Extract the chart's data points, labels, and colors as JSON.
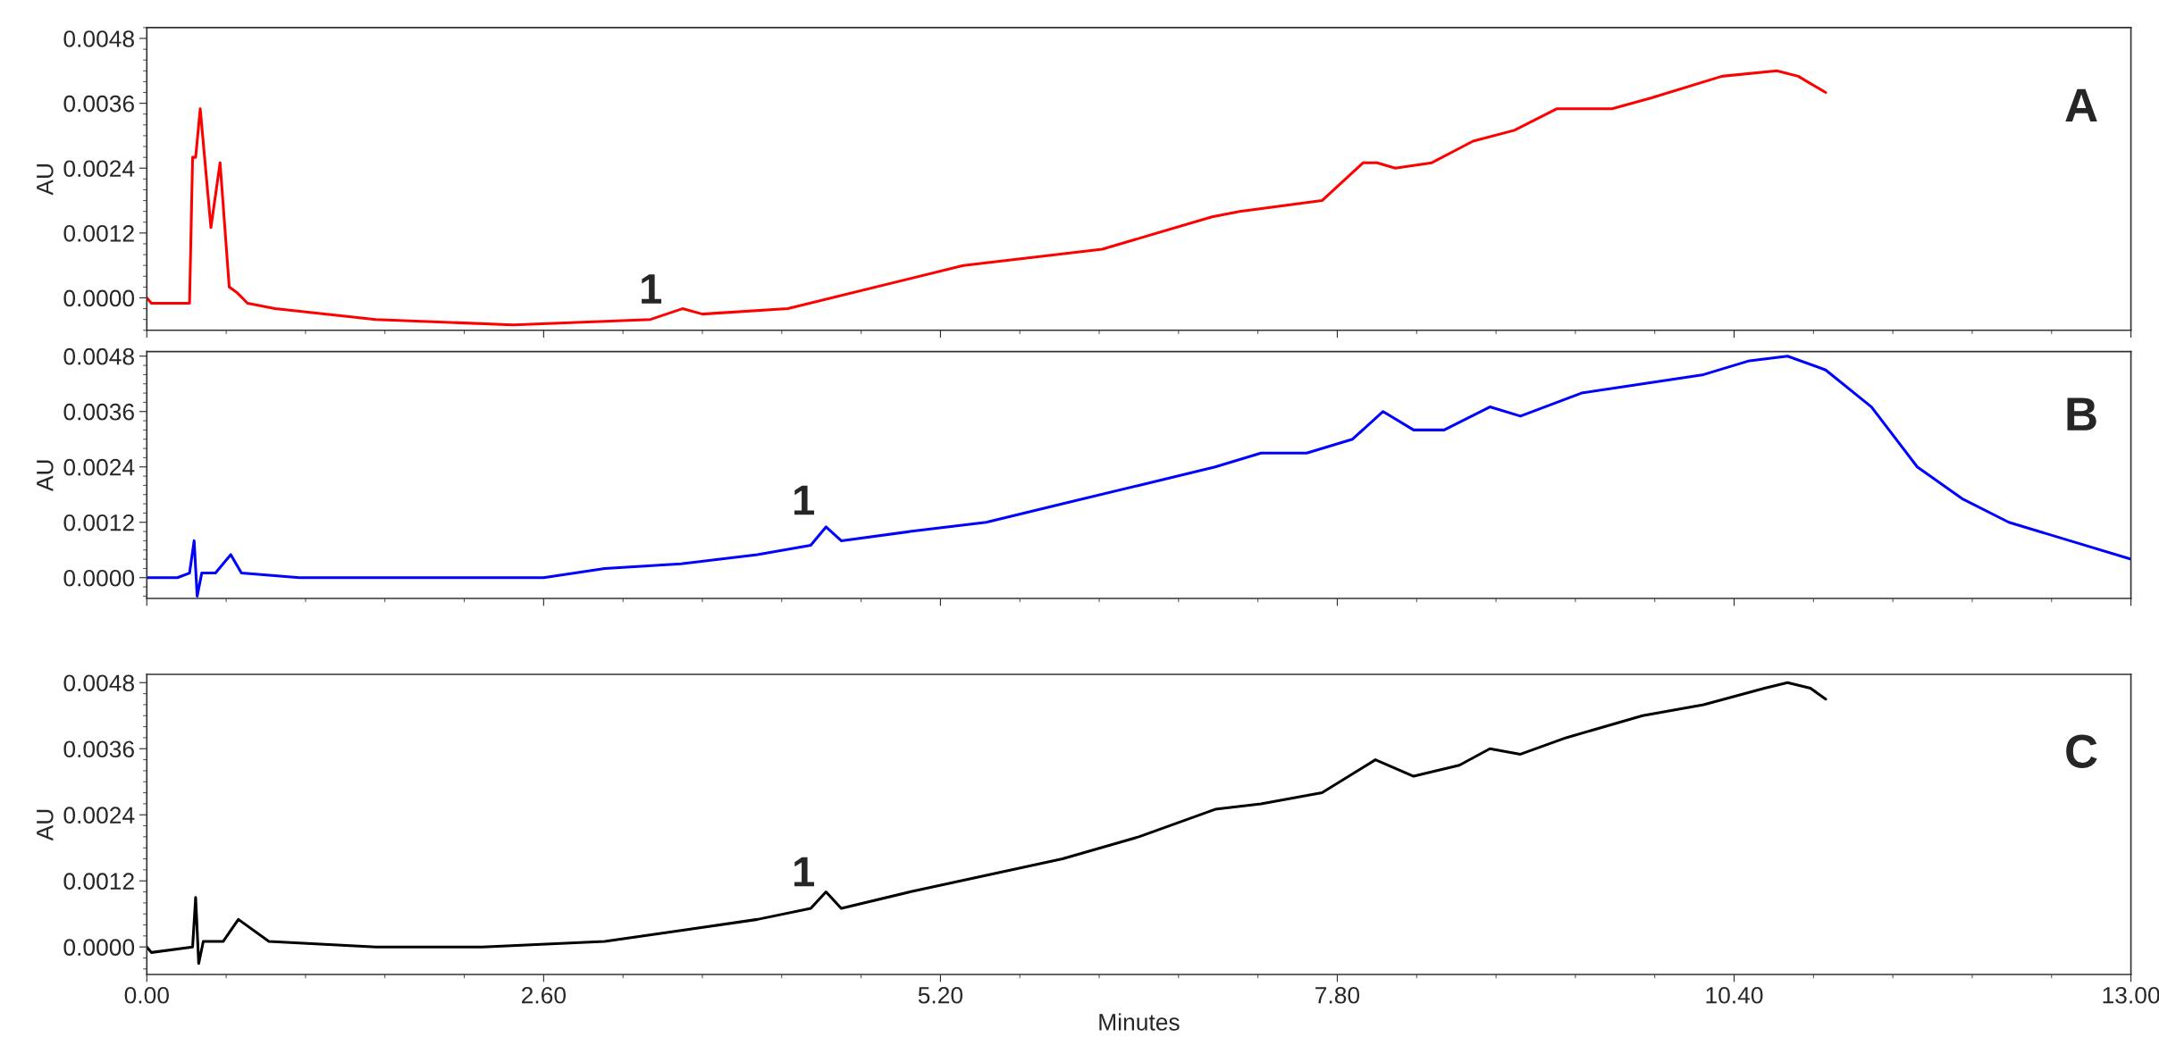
{
  "chart_data": [
    {
      "type": "line",
      "ylabel": "AU",
      "xlim": [
        0,
        13
      ],
      "ylim": [
        -0.0006,
        0.005
      ],
      "xticks": [
        {
          "value": 0,
          "label": null
        },
        {
          "value": 2.6,
          "label": null
        },
        {
          "value": 5.2,
          "label": null
        },
        {
          "value": 7.8,
          "label": null
        },
        {
          "value": 10.4,
          "label": null
        },
        {
          "value": 13,
          "label": null
        }
      ],
      "yticks": [
        {
          "value": 0,
          "label": "0.0000"
        },
        {
          "value": 0.0012,
          "label": "0.0012"
        },
        {
          "value": 0.0024,
          "label": "0.0024"
        },
        {
          "value": 0.0036,
          "label": "0.0036"
        },
        {
          "value": 0.0048,
          "label": "0.0048"
        }
      ],
      "tick_labels": "y",
      "grid": false,
      "legend": false,
      "series": [
        {
          "color": "#ff0000",
          "x": [
            0,
            0.03,
            0.2,
            0.28,
            0.3,
            0.31,
            0.32,
            0.33,
            0.35,
            0.42,
            0.48,
            0.54,
            0.59,
            0.66,
            0.84,
            1.5,
            2.4,
            3.3,
            3.51,
            3.64,
            4.2,
            5.35,
            6.26,
            6.98,
            7.16,
            7.7,
            7.97,
            8.06,
            8.18,
            8.42,
            8.69,
            8.96,
            9.24,
            9.42,
            9.6,
            9.86,
            10.32,
            10.68,
            10.82,
            11.0
          ],
          "values": [
            0,
            -0.0001,
            -0.0001,
            -0.0001,
            0.0026,
            null,
            0.0026,
            null,
            0.0035,
            0.0013,
            0.0025,
            0.0002,
            0.0001,
            -0.0001,
            -0.0002,
            -0.0004,
            -0.0005,
            -0.0004,
            -0.0002,
            -0.0003,
            -0.0002,
            0.0006,
            0.0009,
            0.0015,
            0.0016,
            0.0018,
            0.0025,
            0.0025,
            0.0024,
            0.0025,
            0.0029,
            0.0031,
            0.0035,
            0.0035,
            0.0035,
            0.0037,
            0.0041,
            0.0042,
            0.0041,
            0.0038
          ]
        }
      ],
      "annotations": [
        "1",
        "A"
      ]
    },
    {
      "type": "line",
      "ylabel": "AU",
      "xlim": [
        0,
        13
      ],
      "ylim": [
        -0.00045,
        0.0049
      ],
      "xticks": [
        {
          "value": 0,
          "label": null
        },
        {
          "value": 2.6,
          "label": null
        },
        {
          "value": 5.2,
          "label": null
        },
        {
          "value": 7.8,
          "label": null
        },
        {
          "value": 10.4,
          "label": null
        },
        {
          "value": 13,
          "label": null
        }
      ],
      "yticks": [
        {
          "value": 0,
          "label": "0.0000"
        },
        {
          "value": 0.0012,
          "label": "0.0012"
        },
        {
          "value": 0.0024,
          "label": "0.0024"
        },
        {
          "value": 0.0036,
          "label": "0.0036"
        },
        {
          "value": 0.0048,
          "label": "0.0048"
        }
      ],
      "tick_labels": "y",
      "grid": false,
      "legend": false,
      "series": [
        {
          "color": "#0000ff",
          "x": [
            0,
            0.2,
            0.28,
            0.31,
            0.33,
            0.36,
            0.45,
            0.55,
            0.62,
            1.0,
            2.0,
            2.6,
            3.0,
            3.5,
            4.0,
            4.35,
            4.45,
            4.55,
            5.0,
            5.5,
            6.0,
            6.5,
            7.0,
            7.3,
            7.6,
            7.9,
            8.1,
            8.3,
            8.5,
            8.8,
            9.0,
            9.4,
            9.8,
            10.2,
            10.5,
            10.75,
            11.0,
            11.3,
            11.6,
            11.9,
            12.2,
            12.6,
            13.0
          ],
          "values": [
            0,
            0,
            0.0001,
            0.0008,
            -0.0004,
            0.0001,
            0.0001,
            0.0005,
            0.0001,
            0,
            0,
            0,
            0.0002,
            0.0003,
            0.0005,
            0.0007,
            0.0011,
            0.0008,
            0.001,
            0.0012,
            0.0016,
            0.002,
            0.0024,
            0.0027,
            0.0027,
            0.003,
            0.0036,
            0.0032,
            0.0032,
            0.0037,
            0.0035,
            0.004,
            0.0042,
            0.0044,
            0.0047,
            0.0048,
            0.0045,
            0.0037,
            0.0024,
            0.0017,
            0.0012,
            0.0008,
            0.0004
          ]
        }
      ],
      "annotations": [
        "1",
        "B"
      ]
    },
    {
      "type": "line",
      "ylabel": "AU",
      "xlabel": "Minutes",
      "xlim": [
        0,
        13
      ],
      "ylim": [
        -0.0005,
        0.00495
      ],
      "xticks": [
        {
          "value": 0,
          "label": "0.00"
        },
        {
          "value": 2.6,
          "label": "2.60"
        },
        {
          "value": 5.2,
          "label": "5.20"
        },
        {
          "value": 7.8,
          "label": "7.80"
        },
        {
          "value": 10.4,
          "label": "10.40"
        },
        {
          "value": 13,
          "label": "13.00"
        }
      ],
      "yticks": [
        {
          "value": 0,
          "label": "0.0000"
        },
        {
          "value": 0.0012,
          "label": "0.0012"
        },
        {
          "value": 0.0024,
          "label": "0.0024"
        },
        {
          "value": 0.0036,
          "label": "0.0036"
        },
        {
          "value": 0.0048,
          "label": "0.0048"
        }
      ],
      "grid": false,
      "legend": false,
      "series": [
        {
          "color": "#000000",
          "x": [
            0,
            0.03,
            0.3,
            0.32,
            0.34,
            0.37,
            0.5,
            0.6,
            0.8,
            1.5,
            2.2,
            3.0,
            3.5,
            4.0,
            4.35,
            4.45,
            4.55,
            5.0,
            5.5,
            6.0,
            6.5,
            7.0,
            7.3,
            7.7,
            8.05,
            8.3,
            8.6,
            8.8,
            9.0,
            9.3,
            9.8,
            10.2,
            10.6,
            10.75,
            10.9,
            11.0
          ],
          "values": [
            0,
            -0.0001,
            0,
            0.0009,
            -0.0003,
            0.0001,
            0.0001,
            0.0005,
            0.0001,
            0,
            0,
            0.0001,
            0.0003,
            0.0005,
            0.0007,
            0.001,
            0.0007,
            0.001,
            0.0013,
            0.0016,
            0.002,
            0.0025,
            0.0026,
            0.0028,
            0.0034,
            0.0031,
            0.0033,
            0.0036,
            0.0035,
            0.0038,
            0.0042,
            0.0044,
            0.0047,
            0.0048,
            0.0047,
            0.0045
          ]
        }
      ],
      "annotations": [
        "1",
        "C"
      ]
    }
  ]
}
